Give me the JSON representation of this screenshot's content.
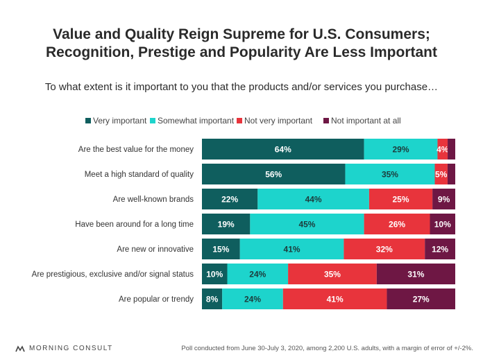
{
  "header": {
    "title_line1": "Value and Quality Reign Supreme for U.S. Consumers;",
    "title_line2": "Recognition, Prestige and Popularity Are Less Important",
    "subtitle": "To what extent is it important to you that the products and/or services you purchase…"
  },
  "chart_data": {
    "type": "bar",
    "orientation": "horizontal",
    "stacked": true,
    "title": "Value and Quality Reign Supreme for U.S. Consumers; Recognition, Prestige and Popularity Are Less Important",
    "subtitle": "To what extent is it important to you that the products and/or services you purchase…",
    "legend_position": "top",
    "grid": false,
    "categories": [
      "Are the best value for the money",
      "Meet a high standard of quality",
      "Are well-known brands",
      "Have been around for a long time",
      "Are new or innovative",
      "Are prestigious, exclusive and/or signal status",
      "Are popular or trendy"
    ],
    "series": [
      {
        "name": "Very important",
        "color": "#0f5e5e",
        "label_color": "#ffffff",
        "values": [
          64,
          56,
          22,
          19,
          15,
          10,
          8
        ]
      },
      {
        "name": "Somewhat important",
        "color": "#1dd4cc",
        "label_color": "#1d3b3b",
        "values": [
          29,
          35,
          44,
          45,
          41,
          24,
          24
        ]
      },
      {
        "name": "Not very important",
        "color": "#e8343c",
        "label_color": "#ffffff",
        "values": [
          4,
          5,
          25,
          26,
          32,
          35,
          41
        ]
      },
      {
        "name": "Not important at all",
        "color": "#6e1744",
        "label_color": "#ffffff",
        "values": [
          3,
          3,
          9,
          10,
          12,
          31,
          27
        ]
      }
    ],
    "value_labels": [
      [
        "64%",
        "29%",
        "4%",
        ""
      ],
      [
        "56%",
        "35%",
        "5%",
        ""
      ],
      [
        "22%",
        "44%",
        "25%",
        "9%"
      ],
      [
        "19%",
        "45%",
        "26%",
        "10%"
      ],
      [
        "15%",
        "41%",
        "32%",
        "12%"
      ],
      [
        "10%",
        "24%",
        "35%",
        "31%"
      ],
      [
        "8%",
        "24%",
        "41%",
        "27%"
      ]
    ]
  },
  "footer": {
    "logo_text": "MORNING CONSULT",
    "note": "Poll conducted from June 30-July 3, 2020, among 2,200 U.S. adults, with a margin of error of +/-2%."
  }
}
